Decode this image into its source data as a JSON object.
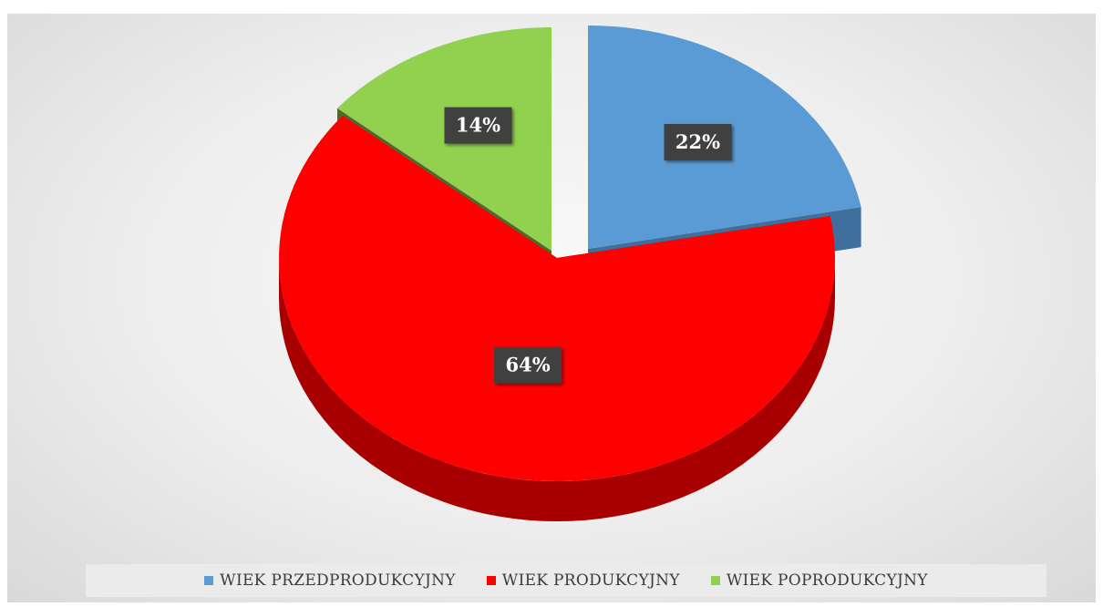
{
  "chart_data": {
    "type": "pie",
    "title": "",
    "slices": [
      {
        "label": "WIEK PRZEDPRODUKCYJNY",
        "value": 22,
        "display": "22%",
        "color": "#5b9bd5",
        "side_color": "#3f6f9c"
      },
      {
        "label": "WIEK PRODUKCYJNY",
        "value": 64,
        "display": "64%",
        "color": "#ff0000",
        "side_color": "#a80000"
      },
      {
        "label": "WIEK POPRODUKCYJNY",
        "value": 14,
        "display": "14%",
        "color": "#92d050",
        "side_color": "#4e6b2b"
      }
    ],
    "legend_position": "bottom",
    "style": "3d exploded pie with dark data label boxes"
  }
}
